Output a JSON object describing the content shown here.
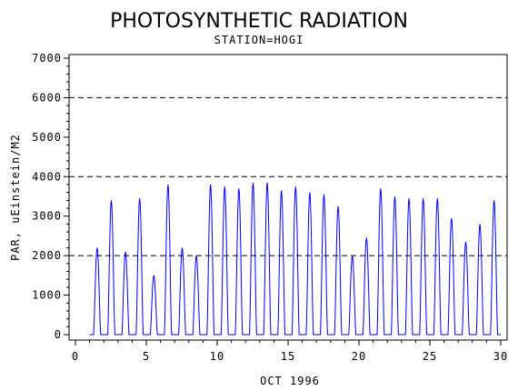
{
  "chart_data": {
    "type": "line",
    "title": "PHOTOSYNTHETIC RADIATION",
    "subtitle": "STATION=HOGI",
    "xlabel": "OCT 1996",
    "ylabel": "PAR, uEinstein/M2",
    "xlim": [
      0,
      30
    ],
    "ylim": [
      0,
      7000
    ],
    "x_ticks": [
      0,
      5,
      10,
      15,
      20,
      25,
      30
    ],
    "y_ticks": [
      0,
      1000,
      2000,
      3000,
      4000,
      5000,
      6000,
      7000
    ],
    "reference_lines": [
      2000,
      4000,
      6000
    ],
    "line_color": "#0000ff",
    "daily_peaks": [
      {
        "day": 1,
        "peak": 2200
      },
      {
        "day": 2,
        "peak": 3400
      },
      {
        "day": 3,
        "peak": 2100
      },
      {
        "day": 4,
        "peak": 3450
      },
      {
        "day": 5,
        "peak": 1500
      },
      {
        "day": 6,
        "peak": 3800
      },
      {
        "day": 7,
        "peak": 2200
      },
      {
        "day": 8,
        "peak": 2000
      },
      {
        "day": 9,
        "peak": 3800
      },
      {
        "day": 10,
        "peak": 3750
      },
      {
        "day": 11,
        "peak": 3700
      },
      {
        "day": 12,
        "peak": 3850
      },
      {
        "day": 13,
        "peak": 3850
      },
      {
        "day": 14,
        "peak": 3650
      },
      {
        "day": 15,
        "peak": 3750
      },
      {
        "day": 16,
        "peak": 3600
      },
      {
        "day": 17,
        "peak": 3550
      },
      {
        "day": 18,
        "peak": 3250
      },
      {
        "day": 19,
        "peak": 2000
      },
      {
        "day": 20,
        "peak": 2450
      },
      {
        "day": 21,
        "peak": 3700
      },
      {
        "day": 22,
        "peak": 3500
      },
      {
        "day": 23,
        "peak": 3450
      },
      {
        "day": 24,
        "peak": 3450
      },
      {
        "day": 25,
        "peak": 3450
      },
      {
        "day": 26,
        "peak": 2950
      },
      {
        "day": 27,
        "peak": 2350
      },
      {
        "day": 28,
        "peak": 2800
      },
      {
        "day": 29,
        "peak": 3400
      }
    ]
  }
}
